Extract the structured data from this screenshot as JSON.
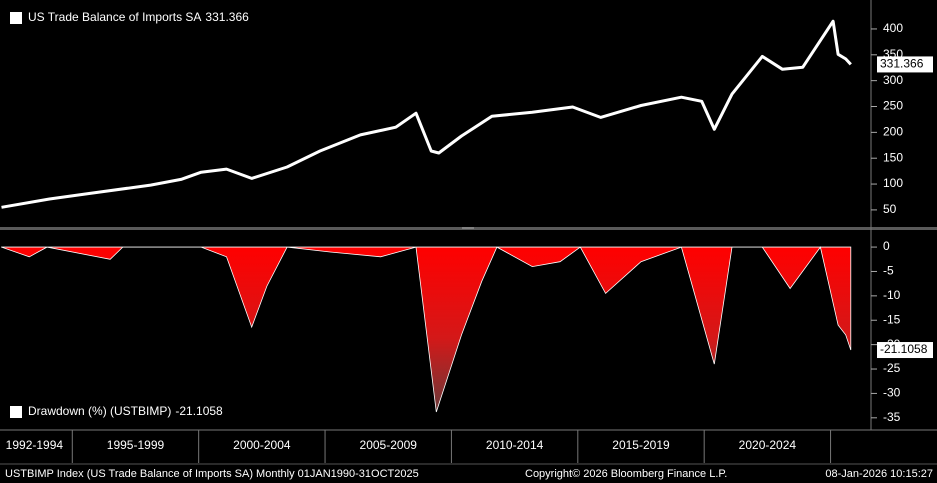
{
  "chart_data": [
    {
      "type": "line",
      "series": [
        {
          "name": "US Trade Balance of Imports SA",
          "color": "#ffffff",
          "x": [
            1992.2,
            1994.1,
            1995.7,
            1998.1,
            1999.3,
            2000.1,
            2001.1,
            2002.1,
            2003.5,
            2004.8,
            2006.4,
            2007.8,
            2008.6,
            2009.2,
            2009.5,
            2010.4,
            2011.6,
            2013.2,
            2014.8,
            2015.9,
            2017.5,
            2019.1,
            2019.9,
            2020.4,
            2021.1,
            2022.3,
            2023.1,
            2023.9,
            2025.1,
            2025.3,
            2025.6,
            2025.8
          ],
          "values": [
            55,
            71,
            82,
            98,
            109,
            123,
            129,
            111,
            133,
            164,
            195,
            210,
            237,
            164,
            160,
            193,
            231,
            239,
            249,
            229,
            252,
            268,
            260,
            206,
            274,
            347,
            322,
            326,
            415,
            351,
            342,
            331.366
          ]
        }
      ],
      "xlim": [
        1992.14,
        2026.6
      ],
      "ylim": [
        15,
        456
      ],
      "yticks": [
        50,
        100,
        150,
        200,
        250,
        300,
        350,
        400
      ]
    },
    {
      "type": "area",
      "series": [
        {
          "name": "Drawdown (%) (USTBIMP)",
          "color": "#ff0000",
          "x": [
            1992.2,
            1993.3,
            1994,
            1996.5,
            1997,
            2000.1,
            2001.1,
            2002.1,
            2002.7,
            2003.5,
            2005.2,
            2007.2,
            2008.6,
            2009.4,
            2010.4,
            2011.2,
            2011.8,
            2013.2,
            2014.3,
            2015.1,
            2016.1,
            2017.5,
            2019.1,
            2020.4,
            2021.1,
            2022.3,
            2023.4,
            2024.6,
            2025.3,
            2025.6,
            2025.8
          ],
          "values": [
            0,
            -2,
            0,
            -2.5,
            0,
            0,
            -2,
            -16.4,
            -8,
            0,
            -1,
            -2,
            0,
            -33.8,
            -18,
            -7,
            0,
            -4,
            -3,
            0,
            -9.5,
            -3,
            0,
            -24,
            0,
            0,
            -8.5,
            0,
            -16,
            -18,
            -21.1058
          ]
        }
      ],
      "xlim": [
        1992.14,
        2026.6
      ],
      "ylim": [
        -37.5,
        3.5
      ],
      "yticks": [
        0,
        -5,
        -10,
        -15,
        -20,
        -25,
        -30,
        -35
      ],
      "xticks": [
        {
          "value": 1993.5,
          "label": "1992-1994"
        },
        {
          "value": 1997.5,
          "label": "1995-1999"
        },
        {
          "value": 2002.5,
          "label": "2000-2004"
        },
        {
          "value": 2007.5,
          "label": "2005-2009"
        },
        {
          "value": 2012.5,
          "label": "2010-2014"
        },
        {
          "value": 2017.5,
          "label": "2015-2019"
        },
        {
          "value": 2022.5,
          "label": "2020-2024"
        }
      ]
    }
  ],
  "footer": {
    "source": "USTBIMP Index (US Trade Balance of Imports SA) Monthly 01JAN1990-31OCT2025",
    "copyright": "Copyright© 2026 Bloomberg Finance L.P.",
    "timestamp": "08-Jan-2026 10:15:27"
  }
}
